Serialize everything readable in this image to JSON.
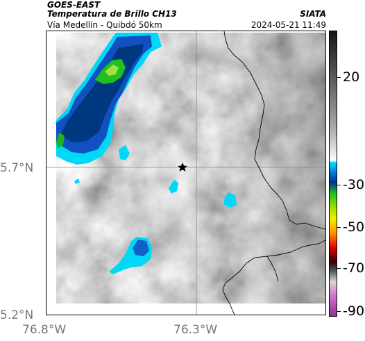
{
  "header": {
    "source": "GOES-EAST",
    "product": "Temperatura de Brillo CH13",
    "organization": "SIATA",
    "region": "Vía Medellín - Quibdó 50km",
    "datetime": "2024-05-21 11:49"
  },
  "axes": {
    "latitude_labels": [
      "5.7°N",
      "5.2°N"
    ],
    "longitude_labels": [
      "76.8°W",
      "76.3°W"
    ]
  },
  "colorbar": {
    "tick_labels": [
      "20",
      "-30",
      "-50",
      "-70",
      "-90"
    ],
    "colors": {
      "warm_top": "#1a1a1a",
      "warm_mid": "#909090",
      "warm_bottom": "#ffffff",
      "cyan": "#00e0ff",
      "blue": "#0040a0",
      "green": "#20c020",
      "yellow": "#f0f000",
      "orange": "#ff8000",
      "red": "#e00000",
      "dark_red": "#300000",
      "light_gray": "#d0d0d0",
      "magenta": "#c040c0"
    }
  },
  "map": {
    "marker_icon": "star-icon",
    "gridline_color": "#888888",
    "coastline_color": "#000000"
  }
}
